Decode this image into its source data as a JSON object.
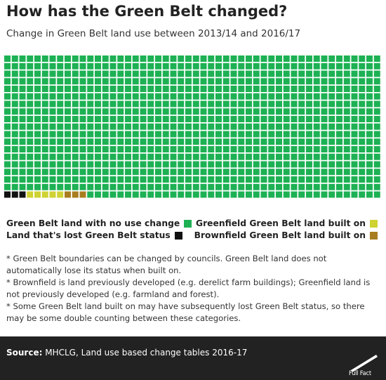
{
  "header": {
    "title": "How has the Green Belt changed?",
    "subtitle": "Change in Green Belt land use between 2013/14 and 2016/17"
  },
  "chart_data": {
    "type": "waffle",
    "title": "How has the Green Belt changed?",
    "subtitle": "Change in Green Belt land use between 2013/14 and 2016/17",
    "total_squares": 950,
    "categories": [
      {
        "name": "Green Belt land with no use change",
        "squares": 939,
        "color": "#1db154"
      },
      {
        "name": "Land that's lost Green Belt status",
        "squares": 3,
        "color": "#111111"
      },
      {
        "name": "Greenfield Green Belt land built on",
        "squares": 5,
        "color": "#cfd233"
      },
      {
        "name": "Brownfield Green Belt land built on",
        "squares": 3,
        "color": "#a87d1f"
      }
    ],
    "legend_placement": "bottom"
  },
  "notes": [
    "* Green Belt boundaries can be changed by councils. Green Belt land does not automatically lose its status when built on.",
    "* Brownfield is land previously developed (e.g. derelict farm buildings); Greenfield land is not previously developed (e.g. farmland and forest).",
    "* Some Green Belt land built on may have subsequently lost Green Belt status, so there may be some double counting between these categories."
  ],
  "footer": {
    "source_label": "Source:",
    "source_text": "MHCLG, Land use based change tables 2016-17",
    "logo_text": "Full Fact",
    "logo_icon": "full-fact-bar-icon"
  }
}
